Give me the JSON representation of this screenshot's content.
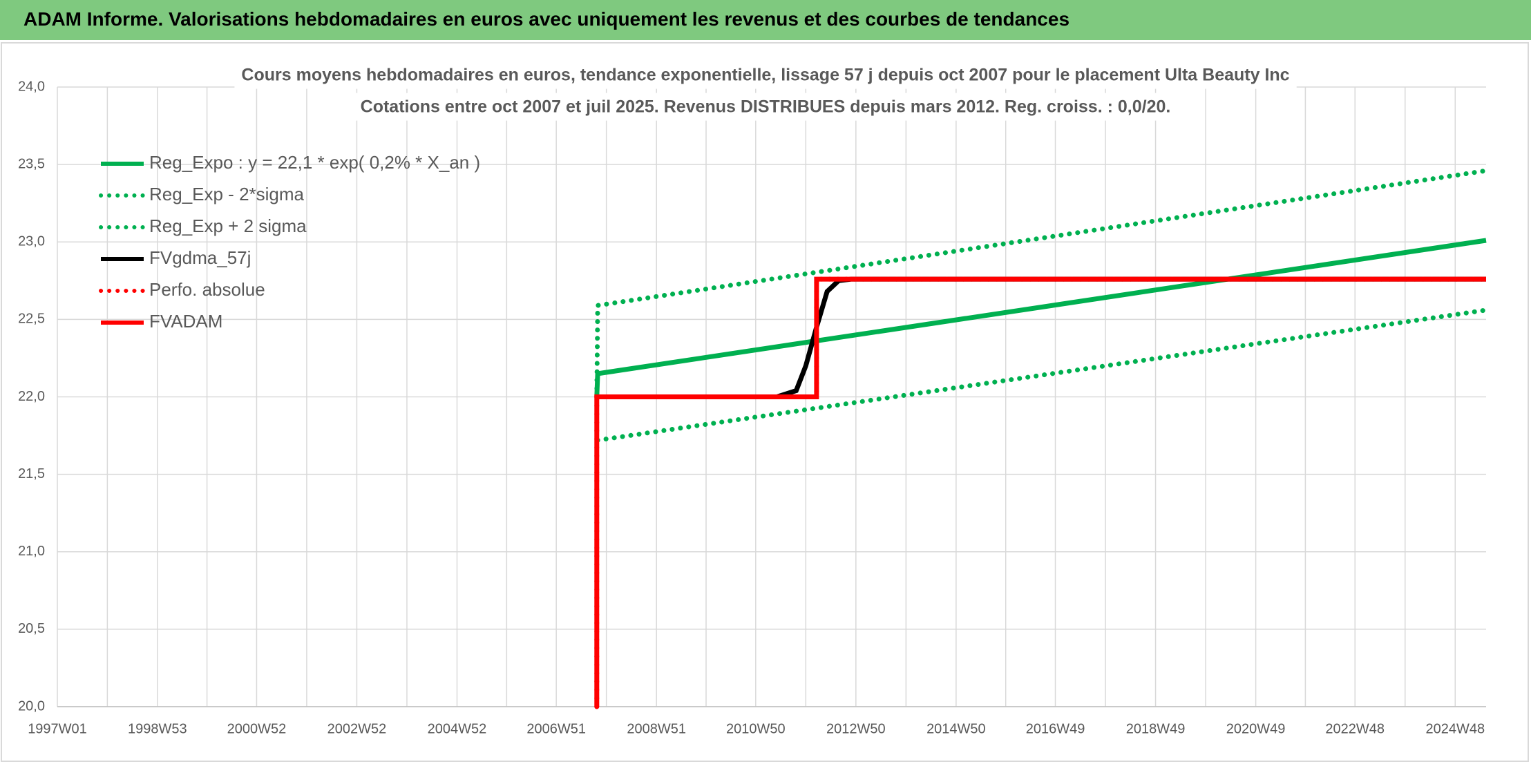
{
  "header": {
    "title": "ADAM Informe. Valorisations hebdomadaires en euros avec uniquement les revenus et des courbes de tendances"
  },
  "chart_data": {
    "type": "line",
    "title": "Cours moyens hebdomadaires en euros, tendance exponentielle, lissage 57 j depuis oct 2007 pour le placement Ulta Beauty Inc",
    "subtitle": "Cotations entre oct 2007 et juil 2025. Revenus DISTRIBUES depuis mars 2012. Reg. croiss. : 0,0/20.",
    "xlim": [
      "1997W01",
      "2025W28"
    ],
    "xticks": [
      "1997W01",
      "1998W53",
      "2000W52",
      "2002W52",
      "2004W52",
      "2006W51",
      "2008W51",
      "2010W50",
      "2012W50",
      "2014W50",
      "2016W49",
      "2018W49",
      "2020W49",
      "2022W48",
      "2024W48"
    ],
    "ylim": [
      20,
      24
    ],
    "yticks": [
      {
        "value": 20,
        "label": "20,0"
      },
      {
        "value": 20.5,
        "label": "20,5"
      },
      {
        "value": 21,
        "label": "21,0"
      },
      {
        "value": 21.5,
        "label": "21,5"
      },
      {
        "value": 22,
        "label": "22,0"
      },
      {
        "value": 22.5,
        "label": "22,5"
      },
      {
        "value": 23,
        "label": "23,0"
      },
      {
        "value": 23.5,
        "label": "23,5"
      },
      {
        "value": 24,
        "label": "24,0"
      }
    ],
    "grid": true,
    "legend": "upper left",
    "series": [
      {
        "name": "Reg_Expo : y = 22,1 * exp( 0,2% *  X_an )",
        "color": "#00b050",
        "style": "solid",
        "x": [
          "2007W41",
          "2007W42",
          "2025W28"
        ],
        "values": [
          22.0,
          22.15,
          23.01
        ]
      },
      {
        "name": "Reg_Exp - 2*sigma",
        "color": "#00b050",
        "style": "dotted",
        "x": [
          "2007W42",
          "2025W28"
        ],
        "values": [
          21.72,
          22.56
        ]
      },
      {
        "name": "Reg_Exp + 2 sigma",
        "color": "#00b050",
        "style": "dotted",
        "x": [
          "2007W41",
          "2007W42",
          "2025W28"
        ],
        "values": [
          22.0,
          22.59,
          23.46
        ]
      },
      {
        "name": "FVgdma_57j",
        "color": "#000000",
        "style": "solid",
        "x": [
          "2007W42",
          "2011W20",
          "2011W40",
          "2011W50",
          "2012W09",
          "2012W20",
          "2012W32",
          "2012W45",
          "2025W28"
        ],
        "values": [
          22.0,
          22.0,
          22.04,
          22.2,
          22.45,
          22.68,
          22.75,
          22.76,
          22.76
        ]
      },
      {
        "name": "Perfo. absolue",
        "color": "#ff0000",
        "style": "dotted",
        "x": [
          "2007W41",
          "2007W41",
          "2012W09",
          "2012W09",
          "2025W28"
        ],
        "values": [
          20.0,
          22.0,
          22.0,
          22.76,
          22.76
        ]
      },
      {
        "name": "FVADAM",
        "color": "#ff0000",
        "style": "solid",
        "x": [
          "2007W41",
          "2007W41",
          "2012W09",
          "2012W09",
          "2025W28"
        ],
        "values": [
          20.0,
          22.0,
          22.0,
          22.76,
          22.76
        ]
      }
    ]
  }
}
